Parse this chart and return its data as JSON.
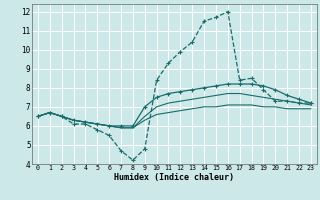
{
  "xlabel": "Humidex (Indice chaleur)",
  "bg_color": "#cce8e8",
  "grid_color": "#ffffff",
  "line_color": "#1a6b6b",
  "xlim": [
    -0.5,
    23.5
  ],
  "ylim": [
    4,
    12.4
  ],
  "yticks": [
    4,
    5,
    6,
    7,
    8,
    9,
    10,
    11,
    12
  ],
  "xticks": [
    0,
    1,
    2,
    3,
    4,
    5,
    6,
    7,
    8,
    9,
    10,
    11,
    12,
    13,
    14,
    15,
    16,
    17,
    18,
    19,
    20,
    21,
    22,
    23
  ],
  "curve1_x": [
    0,
    1,
    2,
    3,
    4,
    5,
    6,
    7,
    8,
    9,
    10,
    11,
    12,
    13,
    14,
    15,
    16,
    17,
    18,
    19,
    20,
    21,
    22,
    23
  ],
  "curve1_y": [
    6.5,
    6.7,
    6.5,
    6.1,
    6.1,
    5.8,
    5.5,
    4.7,
    4.2,
    4.8,
    8.4,
    9.3,
    9.9,
    10.4,
    11.5,
    11.7,
    12.0,
    8.4,
    8.5,
    7.9,
    7.3,
    7.3,
    7.2,
    7.2
  ],
  "curve2_x": [
    0,
    1,
    2,
    3,
    4,
    5,
    6,
    7,
    8,
    9,
    10,
    11,
    12,
    13,
    14,
    15,
    16,
    17,
    18,
    19,
    20,
    21,
    22,
    23
  ],
  "curve2_y": [
    6.5,
    6.7,
    6.5,
    6.3,
    6.2,
    6.1,
    6.0,
    6.0,
    6.0,
    7.0,
    7.5,
    7.7,
    7.8,
    7.9,
    8.0,
    8.1,
    8.2,
    8.2,
    8.2,
    8.1,
    7.9,
    7.6,
    7.4,
    7.2
  ],
  "curve3_x": [
    0,
    1,
    2,
    3,
    4,
    5,
    6,
    7,
    8,
    9,
    10,
    11,
    12,
    13,
    14,
    15,
    16,
    17,
    18,
    19,
    20,
    21,
    22,
    23
  ],
  "curve3_y": [
    6.5,
    6.7,
    6.5,
    6.3,
    6.2,
    6.1,
    6.0,
    5.9,
    5.9,
    6.5,
    7.0,
    7.2,
    7.3,
    7.4,
    7.5,
    7.6,
    7.7,
    7.7,
    7.6,
    7.5,
    7.4,
    7.3,
    7.2,
    7.1
  ],
  "curve4_x": [
    0,
    1,
    2,
    3,
    4,
    5,
    6,
    7,
    8,
    9,
    10,
    11,
    12,
    13,
    14,
    15,
    16,
    17,
    18,
    19,
    20,
    21,
    22,
    23
  ],
  "curve4_y": [
    6.5,
    6.7,
    6.5,
    6.3,
    6.2,
    6.1,
    6.0,
    5.9,
    5.9,
    6.3,
    6.6,
    6.7,
    6.8,
    6.9,
    7.0,
    7.0,
    7.1,
    7.1,
    7.1,
    7.0,
    7.0,
    6.9,
    6.9,
    6.9
  ]
}
